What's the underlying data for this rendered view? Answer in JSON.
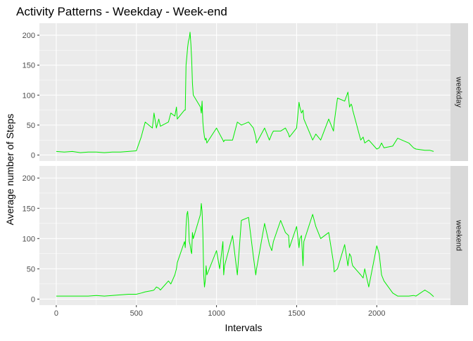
{
  "chart_data": {
    "type": "line",
    "title": "Activity Patterns - Weekday - Week-end",
    "xlabel": "Intervals",
    "ylabel": "Average number of Steps",
    "xlim": [
      -105,
      2460
    ],
    "ylim": [
      -10,
      220
    ],
    "x_ticks": [
      0,
      500,
      1000,
      1500,
      2000
    ],
    "y_ticks": [
      0,
      50,
      100,
      150,
      200
    ],
    "grid": true,
    "facet_strip_position": "right",
    "colors": {
      "line": "#00ee00",
      "panel_bg": "#ebebeb",
      "strip_bg": "#d9d9d9",
      "grid": "#ffffff",
      "axis_text": "#4d4d4d"
    },
    "panels": [
      {
        "name": "weekday",
        "x": [
          0,
          50,
          100,
          150,
          200,
          250,
          300,
          350,
          400,
          450,
          500,
          530,
          555,
          600,
          610,
          625,
          640,
          650,
          700,
          715,
          740,
          750,
          755,
          800,
          805,
          810,
          815,
          820,
          825,
          830,
          835,
          840,
          845,
          850,
          855,
          900,
          905,
          910,
          915,
          920,
          925,
          930,
          935,
          940,
          1000,
          1020,
          1040,
          1045,
          1050,
          1100,
          1130,
          1155,
          1200,
          1230,
          1245,
          1250,
          1300,
          1330,
          1345,
          1355,
          1400,
          1430,
          1450,
          1455,
          1500,
          1515,
          1520,
          1530,
          1540,
          1545,
          1600,
          1620,
          1650,
          1700,
          1730,
          1735,
          1755,
          1800,
          1820,
          1830,
          1840,
          1845,
          1850,
          1900,
          1915,
          1925,
          1950,
          2000,
          2015,
          2030,
          2045,
          2100,
          2130,
          2200,
          2230,
          2245,
          2300,
          2330,
          2355
        ],
        "y": [
          6,
          5,
          6,
          4,
          5,
          5,
          4,
          5,
          5,
          6,
          7,
          30,
          55,
          45,
          70,
          45,
          60,
          48,
          55,
          70,
          65,
          80,
          60,
          75,
          75,
          150,
          165,
          180,
          190,
          195,
          205,
          185,
          160,
          120,
          100,
          80,
          70,
          90,
          55,
          40,
          30,
          25,
          28,
          20,
          45,
          35,
          25,
          22,
          25,
          25,
          55,
          50,
          55,
          45,
          30,
          20,
          45,
          25,
          35,
          40,
          40,
          45,
          35,
          30,
          45,
          88,
          80,
          70,
          75,
          60,
          25,
          35,
          25,
          60,
          40,
          55,
          95,
          90,
          105,
          80,
          85,
          82,
          75,
          25,
          30,
          20,
          25,
          10,
          12,
          20,
          12,
          15,
          28,
          20,
          12,
          10,
          8,
          8,
          6
        ]
      },
      {
        "name": "weekend",
        "x": [
          0,
          50,
          100,
          150,
          200,
          250,
          300,
          350,
          400,
          450,
          500,
          530,
          555,
          600,
          610,
          625,
          640,
          650,
          700,
          715,
          740,
          750,
          755,
          800,
          805,
          810,
          815,
          820,
          825,
          830,
          835,
          840,
          845,
          850,
          855,
          900,
          905,
          910,
          915,
          920,
          925,
          930,
          935,
          940,
          1000,
          1020,
          1040,
          1045,
          1050,
          1100,
          1130,
          1155,
          1200,
          1230,
          1245,
          1250,
          1300,
          1330,
          1345,
          1355,
          1400,
          1430,
          1450,
          1455,
          1500,
          1515,
          1520,
          1530,
          1540,
          1545,
          1600,
          1620,
          1650,
          1700,
          1730,
          1735,
          1755,
          1800,
          1820,
          1830,
          1840,
          1845,
          1850,
          1900,
          1915,
          1925,
          1950,
          2000,
          2015,
          2030,
          2045,
          2100,
          2130,
          2200,
          2230,
          2245,
          2300,
          2330,
          2355
        ],
        "y": [
          5,
          5,
          5,
          5,
          5,
          6,
          5,
          6,
          7,
          8,
          8,
          10,
          12,
          14,
          15,
          20,
          18,
          15,
          30,
          25,
          40,
          50,
          60,
          95,
          85,
          120,
          140,
          145,
          130,
          95,
          90,
          80,
          75,
          110,
          100,
          140,
          158,
          145,
          110,
          40,
          20,
          30,
          55,
          40,
          80,
          50,
          95,
          40,
          55,
          105,
          40,
          130,
          135,
          70,
          40,
          50,
          125,
          90,
          80,
          95,
          130,
          110,
          105,
          85,
          120,
          85,
          100,
          105,
          55,
          95,
          140,
          120,
          100,
          110,
          60,
          45,
          50,
          90,
          55,
          75,
          70,
          60,
          55,
          40,
          35,
          50,
          20,
          88,
          75,
          40,
          30,
          10,
          5,
          5,
          6,
          5,
          15,
          10,
          4
        ]
      }
    ]
  }
}
